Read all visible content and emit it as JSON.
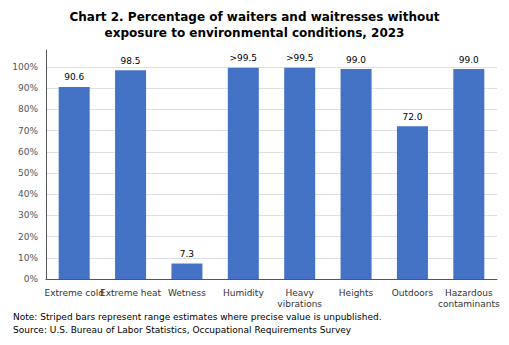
{
  "chart_data": {
    "type": "bar",
    "title": "Chart 2. Percentage of waiters and waitresses without\nexposure to environmental conditions, 2023",
    "categories": [
      "Extreme cold",
      "Extreme heat",
      "Wetness",
      "Humidity",
      "Heavy\nvibrations",
      "Heights",
      "Outdoors",
      "Hazardous\ncontaminants"
    ],
    "values": [
      90.6,
      98.5,
      7.3,
      99.6,
      99.6,
      99.0,
      72.0,
      99.0
    ],
    "value_labels": [
      "90.6",
      "98.5",
      "7.3",
      ">99.5",
      ">99.5",
      "99.0",
      "72.0",
      "99.0"
    ],
    "data_labels": true,
    "color": "#4472C4",
    "ylim": [
      0,
      108
    ],
    "yticks": [
      {
        "value": 0,
        "label": "0%"
      },
      {
        "value": 10,
        "label": "10%"
      },
      {
        "value": 20,
        "label": "20%"
      },
      {
        "value": 30,
        "label": "30%"
      },
      {
        "value": 40,
        "label": "40%"
      },
      {
        "value": 50,
        "label": "50%"
      },
      {
        "value": 60,
        "label": "60%"
      },
      {
        "value": 70,
        "label": "70%"
      },
      {
        "value": 80,
        "label": "80%"
      },
      {
        "value": 90,
        "label": "90%"
      },
      {
        "value": 100,
        "label": "100%"
      }
    ],
    "grid": true,
    "annotations": [
      "Note: Striped bars represent range estimates where precise value is unpublished.",
      "Source: U.S. Bureau of Labor Statistics, Occupational Requirements Survey"
    ]
  }
}
